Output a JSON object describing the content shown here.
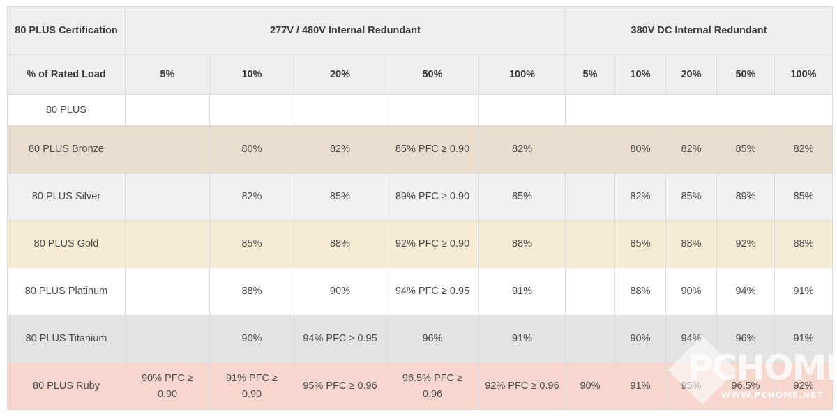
{
  "header": {
    "cert_label": "80 PLUS Certification",
    "group_ac": "277V / 480V Internal Redundant",
    "group_dc": "380V DC Internal Redundant",
    "load_label": "% of Rated Load",
    "ac_loads": [
      "5%",
      "10%",
      "20%",
      "50%",
      "100%"
    ],
    "dc_loads": [
      "5%",
      "10%",
      "20%",
      "50%",
      "100%"
    ]
  },
  "rows": [
    {
      "name": "80 PLUS",
      "ac": [
        "",
        "",
        "",
        "",
        ""
      ],
      "dc": [
        "",
        "",
        "",
        "",
        ""
      ]
    },
    {
      "name": "80 PLUS Bronze",
      "ac": [
        "",
        "80%",
        "82%",
        "85% PFC ≥ 0.90",
        "82%"
      ],
      "dc": [
        "",
        "80%",
        "82%",
        "85%",
        "82%"
      ]
    },
    {
      "name": "80 PLUS Silver",
      "ac": [
        "",
        "82%",
        "85%",
        "89% PFC ≥ 0.90",
        "85%"
      ],
      "dc": [
        "",
        "82%",
        "85%",
        "89%",
        "85%"
      ]
    },
    {
      "name": "80 PLUS Gold",
      "ac": [
        "",
        "85%",
        "88%",
        "92% PFC ≥ 0.90",
        "88%"
      ],
      "dc": [
        "",
        "85%",
        "88%",
        "92%",
        "88%"
      ]
    },
    {
      "name": "80 PLUS Platinum",
      "ac": [
        "",
        "88%",
        "90%",
        "94% PFC ≥ 0.95",
        "91%"
      ],
      "dc": [
        "",
        "88%",
        "90%",
        "94%",
        "91%"
      ]
    },
    {
      "name": "80 PLUS Titanium",
      "ac": [
        "",
        "90%",
        "94% PFC ≥ 0.95",
        "96%",
        "91%"
      ],
      "dc": [
        "",
        "90%",
        "94%",
        "96%",
        "91%"
      ]
    },
    {
      "name": "80 PLUS Ruby",
      "ac": [
        "90% PFC ≥ 0.90",
        "91% PFC ≥ 0.90",
        "95% PFC ≥ 0.96",
        "96.5% PFC ≥ 0.96",
        "92% PFC ≥ 0.96"
      ],
      "dc": [
        "90%",
        "91%",
        "95%",
        "96.5%",
        "92%"
      ]
    }
  ],
  "watermark": {
    "brand": "PCHOME",
    "url": "WWW.PCHOME.NET"
  }
}
